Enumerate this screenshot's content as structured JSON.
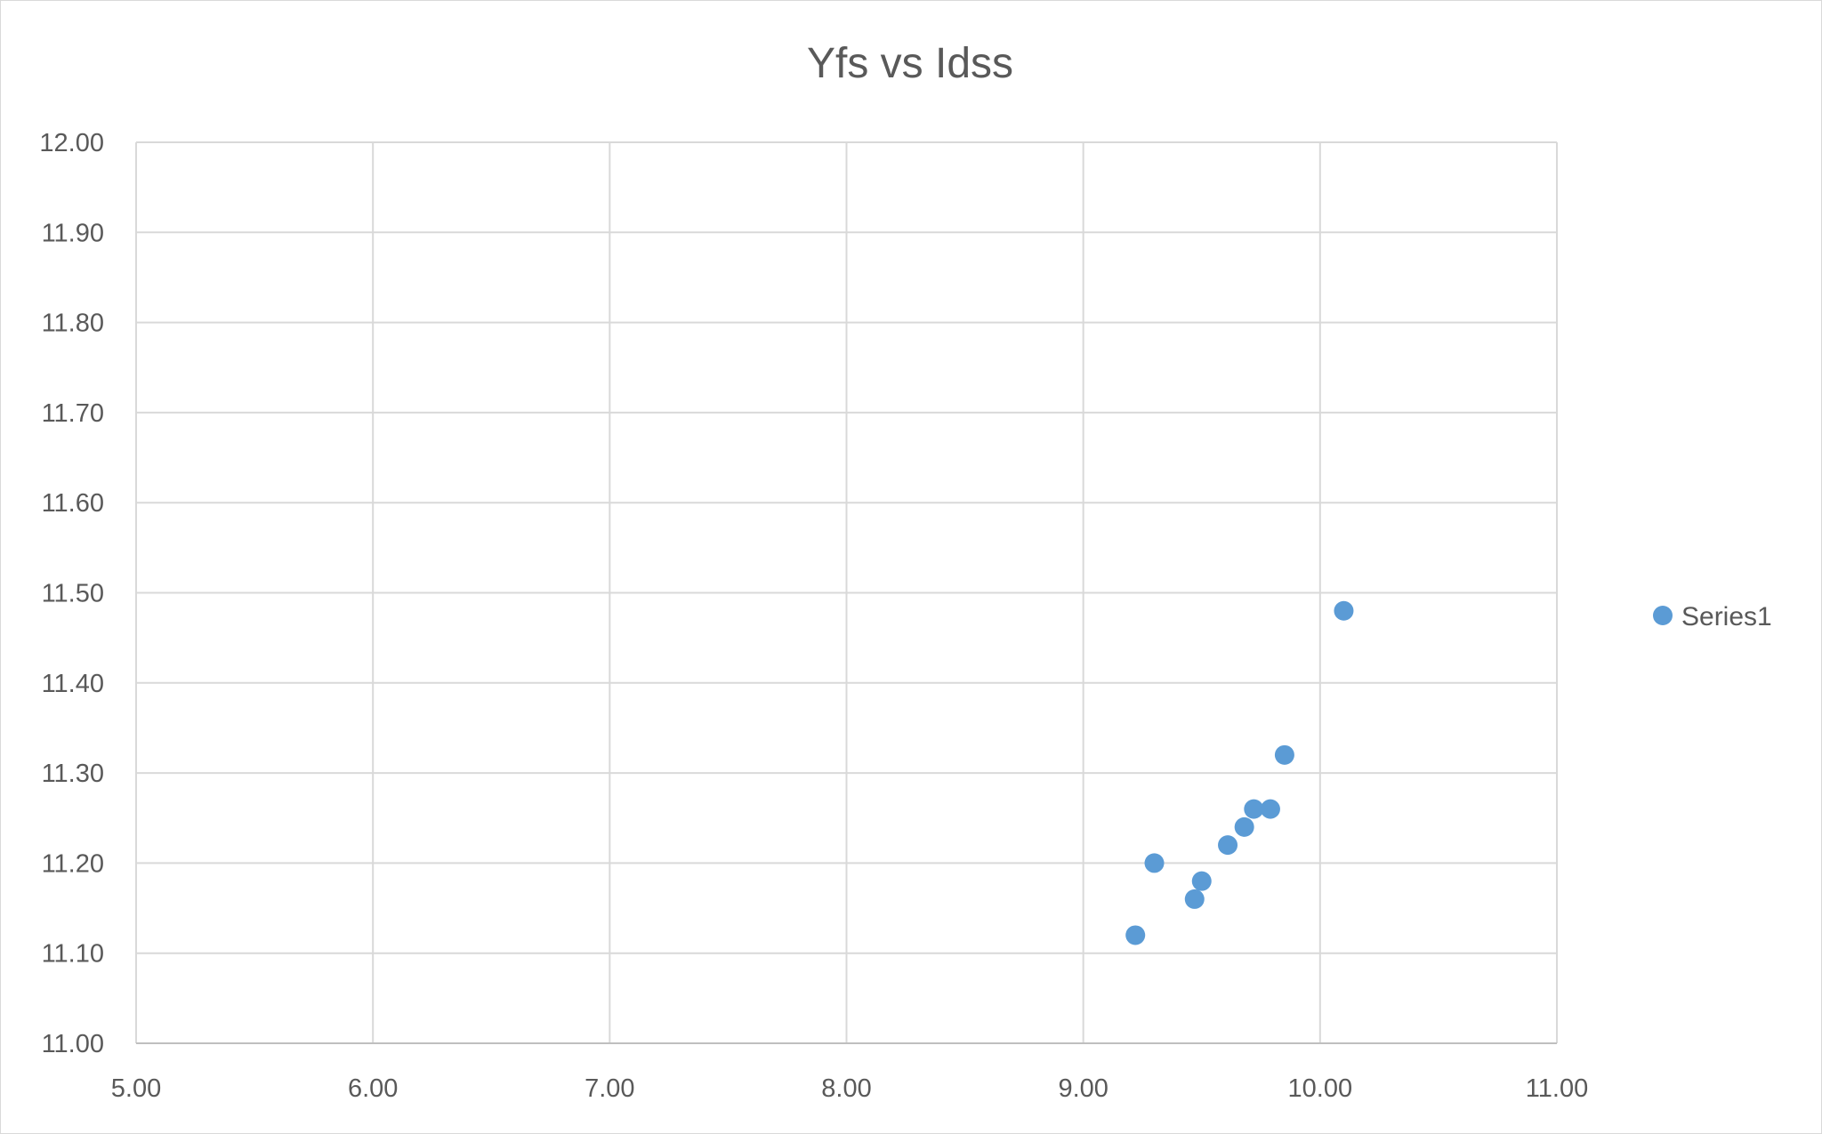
{
  "chart_data": {
    "type": "scatter",
    "title": "Yfs vs Idss",
    "xlabel": "",
    "ylabel": "",
    "xlim": [
      5.0,
      11.0
    ],
    "ylim": [
      11.0,
      12.0
    ],
    "x_ticks": [
      "5.00",
      "6.00",
      "7.00",
      "8.00",
      "9.00",
      "10.00",
      "11.00"
    ],
    "y_ticks": [
      "11.00",
      "11.10",
      "11.20",
      "11.30",
      "11.40",
      "11.50",
      "11.60",
      "11.70",
      "11.80",
      "11.90",
      "12.00"
    ],
    "grid": true,
    "legend_position": "right",
    "series": [
      {
        "name": "Series1",
        "color": "#5b9bd5",
        "points": [
          {
            "x": 9.22,
            "y": 11.12
          },
          {
            "x": 9.3,
            "y": 11.2
          },
          {
            "x": 9.47,
            "y": 11.16
          },
          {
            "x": 9.5,
            "y": 11.18
          },
          {
            "x": 9.61,
            "y": 11.22
          },
          {
            "x": 9.68,
            "y": 11.24
          },
          {
            "x": 9.72,
            "y": 11.26
          },
          {
            "x": 9.79,
            "y": 11.26
          },
          {
            "x": 9.85,
            "y": 11.32
          },
          {
            "x": 10.1,
            "y": 11.48
          }
        ]
      }
    ]
  }
}
